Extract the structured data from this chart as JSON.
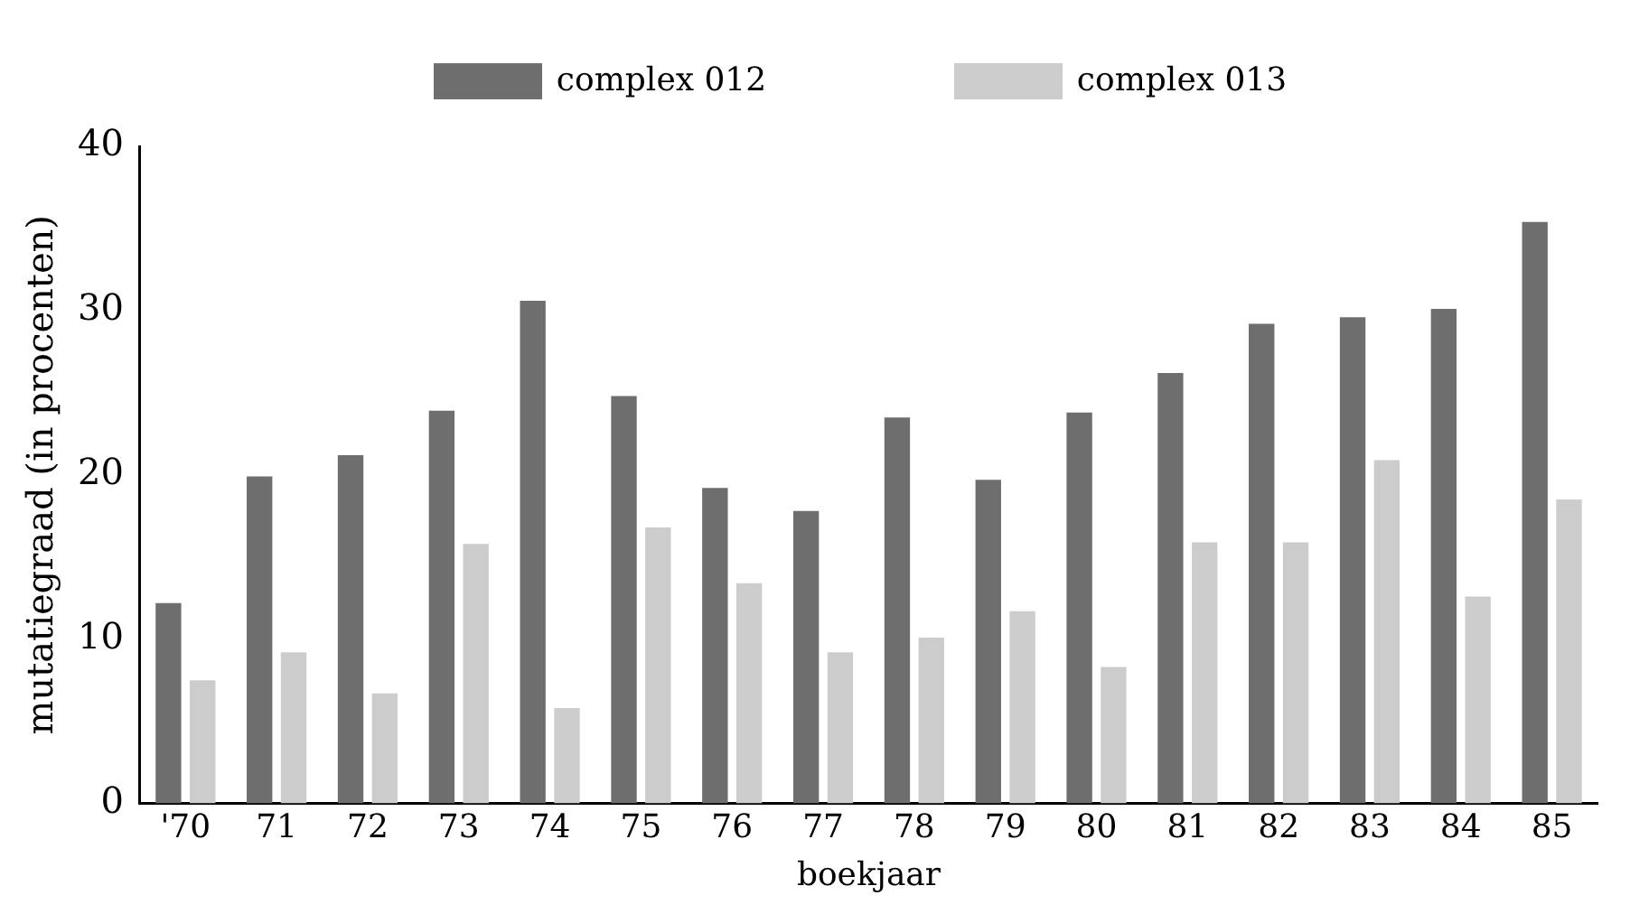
{
  "chart_data": {
    "type": "bar",
    "xlabel": "boekjaar",
    "ylabel": "mutatiegraad (in procenten)",
    "categories": [
      "'70",
      "71",
      "72",
      "73",
      "74",
      "75",
      "76",
      "77",
      "78",
      "79",
      "80",
      "81",
      "82",
      "83",
      "84",
      "85"
    ],
    "series": [
      {
        "name": "complex 012",
        "color": "#6e6e6e",
        "values": [
          12.2,
          19.9,
          21.2,
          23.9,
          30.6,
          24.8,
          19.2,
          17.8,
          23.5,
          19.7,
          23.8,
          26.2,
          29.2,
          29.6,
          30.1,
          35.4
        ]
      },
      {
        "name": "complex 013",
        "color": "#cccccc",
        "values": [
          7.5,
          9.2,
          6.7,
          15.8,
          5.8,
          16.8,
          13.4,
          9.2,
          10.1,
          11.7,
          8.3,
          15.9,
          15.9,
          20.9,
          12.6,
          18.5
        ]
      }
    ],
    "ylim": [
      0,
      40
    ],
    "yticks": [
      0,
      10,
      20,
      30,
      40
    ],
    "grid": false,
    "legend": "top"
  }
}
